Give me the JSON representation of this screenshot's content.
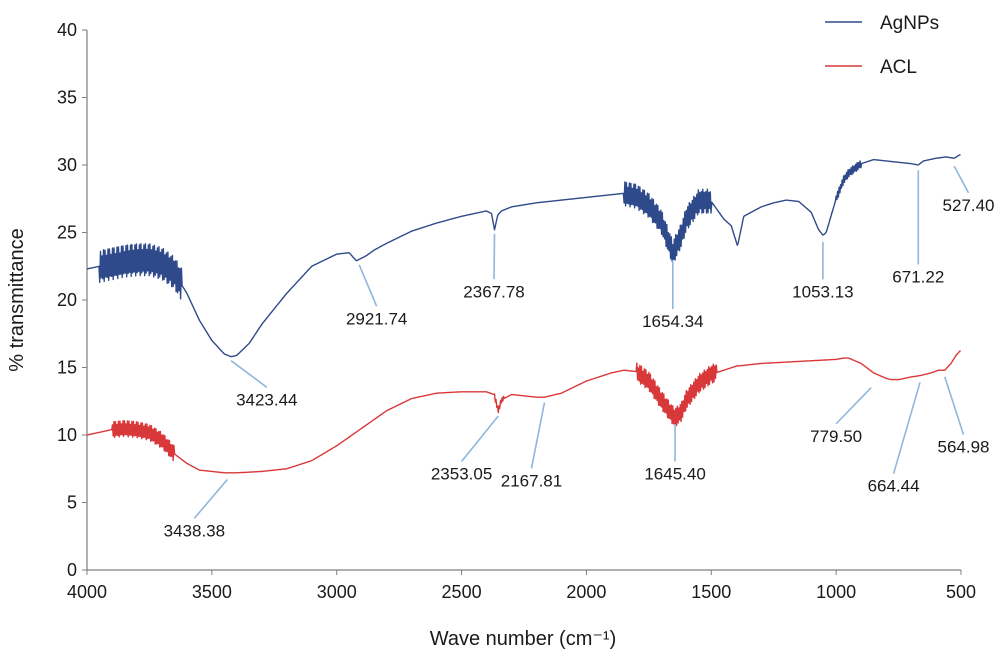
{
  "chart_data": {
    "type": "line",
    "title": "",
    "xlabel": "Wave number (cm⁻¹)",
    "ylabel": "% transmittance",
    "xlim": [
      4000,
      500
    ],
    "ylim": [
      0,
      40
    ],
    "x_reversed": true,
    "x_ticks": [
      4000,
      3500,
      3000,
      2500,
      2000,
      1500,
      1000,
      500
    ],
    "y_ticks": [
      0,
      5,
      10,
      15,
      20,
      25,
      30,
      35,
      40
    ],
    "grid": false,
    "legend_position": "top-right",
    "series": [
      {
        "name": "AgNPs",
        "color": "#2f4a8a",
        "noise_bands": [
          [
            3950,
            3620,
            1.2
          ],
          [
            1850,
            1500,
            0.9
          ],
          [
            1000,
            900,
            0.3
          ]
        ],
        "points": [
          [
            4000,
            22.3
          ],
          [
            3950,
            22.5
          ],
          [
            3900,
            22.7
          ],
          [
            3850,
            22.9
          ],
          [
            3800,
            23.0
          ],
          [
            3750,
            23.0
          ],
          [
            3700,
            22.7
          ],
          [
            3650,
            22.0
          ],
          [
            3600,
            20.5
          ],
          [
            3550,
            18.5
          ],
          [
            3500,
            17.0
          ],
          [
            3450,
            16.0
          ],
          [
            3423,
            15.8
          ],
          [
            3400,
            15.9
          ],
          [
            3350,
            16.8
          ],
          [
            3300,
            18.2
          ],
          [
            3200,
            20.5
          ],
          [
            3100,
            22.5
          ],
          [
            3000,
            23.4
          ],
          [
            2950,
            23.5
          ],
          [
            2921,
            22.9
          ],
          [
            2880,
            23.3
          ],
          [
            2850,
            23.7
          ],
          [
            2800,
            24.2
          ],
          [
            2700,
            25.1
          ],
          [
            2600,
            25.7
          ],
          [
            2500,
            26.2
          ],
          [
            2400,
            26.6
          ],
          [
            2380,
            26.4
          ],
          [
            2368,
            25.2
          ],
          [
            2355,
            26.3
          ],
          [
            2340,
            26.6
          ],
          [
            2300,
            26.9
          ],
          [
            2200,
            27.2
          ],
          [
            2100,
            27.4
          ],
          [
            2000,
            27.6
          ],
          [
            1900,
            27.8
          ],
          [
            1850,
            27.9
          ],
          [
            1800,
            27.7
          ],
          [
            1750,
            27.0
          ],
          [
            1700,
            25.8
          ],
          [
            1654,
            23.5
          ],
          [
            1620,
            24.8
          ],
          [
            1600,
            26.0
          ],
          [
            1550,
            27.3
          ],
          [
            1500,
            27.3
          ],
          [
            1450,
            26.0
          ],
          [
            1420,
            25.5
          ],
          [
            1395,
            24.0
          ],
          [
            1370,
            26.2
          ],
          [
            1300,
            26.9
          ],
          [
            1250,
            27.2
          ],
          [
            1200,
            27.4
          ],
          [
            1150,
            27.3
          ],
          [
            1100,
            26.5
          ],
          [
            1070,
            25.2
          ],
          [
            1053,
            24.8
          ],
          [
            1040,
            25.0
          ],
          [
            1000,
            27.5
          ],
          [
            970,
            28.9
          ],
          [
            950,
            29.4
          ],
          [
            900,
            30.1
          ],
          [
            850,
            30.4
          ],
          [
            800,
            30.3
          ],
          [
            750,
            30.2
          ],
          [
            700,
            30.1
          ],
          [
            671,
            30.0
          ],
          [
            650,
            30.3
          ],
          [
            600,
            30.5
          ],
          [
            560,
            30.6
          ],
          [
            527,
            30.5
          ],
          [
            510,
            30.7
          ],
          [
            500,
            30.8
          ]
        ]
      },
      {
        "name": "ACL",
        "color": "#d9383a",
        "noise_bands": [
          [
            3900,
            3650,
            0.6
          ],
          [
            1800,
            1480,
            0.7
          ],
          [
            2370,
            2330,
            0.2
          ]
        ],
        "points": [
          [
            4000,
            10.0
          ],
          [
            3950,
            10.2
          ],
          [
            3900,
            10.4
          ],
          [
            3850,
            10.5
          ],
          [
            3800,
            10.4
          ],
          [
            3750,
            10.2
          ],
          [
            3700,
            9.6
          ],
          [
            3650,
            8.6
          ],
          [
            3600,
            7.9
          ],
          [
            3550,
            7.4
          ],
          [
            3500,
            7.3
          ],
          [
            3450,
            7.2
          ],
          [
            3438,
            7.2
          ],
          [
            3400,
            7.2
          ],
          [
            3300,
            7.3
          ],
          [
            3200,
            7.5
          ],
          [
            3100,
            8.1
          ],
          [
            3000,
            9.2
          ],
          [
            2900,
            10.5
          ],
          [
            2800,
            11.8
          ],
          [
            2700,
            12.7
          ],
          [
            2600,
            13.1
          ],
          [
            2500,
            13.2
          ],
          [
            2400,
            13.2
          ],
          [
            2370,
            13.0
          ],
          [
            2353,
            11.8
          ],
          [
            2340,
            12.6
          ],
          [
            2300,
            13.0
          ],
          [
            2250,
            12.9
          ],
          [
            2200,
            12.8
          ],
          [
            2168,
            12.8
          ],
          [
            2100,
            13.1
          ],
          [
            2000,
            14.0
          ],
          [
            1900,
            14.6
          ],
          [
            1850,
            14.8
          ],
          [
            1800,
            14.7
          ],
          [
            1750,
            14.0
          ],
          [
            1700,
            12.6
          ],
          [
            1660,
            11.6
          ],
          [
            1645,
            11.3
          ],
          [
            1620,
            11.7
          ],
          [
            1600,
            12.6
          ],
          [
            1550,
            13.8
          ],
          [
            1500,
            14.5
          ],
          [
            1450,
            14.8
          ],
          [
            1400,
            15.1
          ],
          [
            1300,
            15.3
          ],
          [
            1200,
            15.4
          ],
          [
            1100,
            15.5
          ],
          [
            1000,
            15.6
          ],
          [
            970,
            15.7
          ],
          [
            950,
            15.7
          ],
          [
            900,
            15.3
          ],
          [
            850,
            14.6
          ],
          [
            800,
            14.2
          ],
          [
            779,
            14.1
          ],
          [
            750,
            14.1
          ],
          [
            700,
            14.3
          ],
          [
            664,
            14.4
          ],
          [
            620,
            14.6
          ],
          [
            590,
            14.8
          ],
          [
            565,
            14.8
          ],
          [
            540,
            15.3
          ],
          [
            520,
            15.9
          ],
          [
            500,
            16.3
          ]
        ]
      }
    ],
    "annotations": [
      {
        "text": "3423.44",
        "series": "AgNPs",
        "x": 3423,
        "y": 15.8,
        "label_x": 3280,
        "label_y": 12.2
      },
      {
        "text": "2921.74",
        "series": "AgNPs",
        "x": 2910,
        "y": 22.9,
        "label_x": 2840,
        "label_y": 18.2
      },
      {
        "text": "2367.78",
        "series": "AgNPs",
        "x": 2368,
        "y": 25.2,
        "label_x": 2370,
        "label_y": 20.2
      },
      {
        "text": "1654.34",
        "series": "AgNPs",
        "x": 1654,
        "y": 23.2,
        "label_x": 1654,
        "label_y": 18.0
      },
      {
        "text": "1053.13",
        "series": "AgNPs",
        "x": 1053,
        "y": 24.6,
        "label_x": 1053,
        "label_y": 20.2
      },
      {
        "text": "671.22",
        "series": "AgNPs",
        "x": 671,
        "y": 29.9,
        "label_x": 671,
        "label_y": 21.3
      },
      {
        "text": "527.40",
        "series": "AgNPs",
        "x": 527,
        "y": 30.2,
        "label_x": 470,
        "label_y": 26.6
      },
      {
        "text": "3438.38",
        "series": "ACL",
        "x": 3438,
        "y": 7.0,
        "label_x": 3570,
        "label_y": 2.5
      },
      {
        "text": "2353.05",
        "series": "ACL",
        "x": 2353,
        "y": 11.7,
        "label_x": 2500,
        "label_y": 6.7
      },
      {
        "text": "2167.81",
        "series": "ACL",
        "x": 2168,
        "y": 12.7,
        "label_x": 2220,
        "label_y": 6.2
      },
      {
        "text": "1645.40",
        "series": "ACL",
        "x": 1645,
        "y": 11.1,
        "label_x": 1645,
        "label_y": 6.7
      },
      {
        "text": "779.50",
        "series": "ACL",
        "x": 860,
        "y": 13.8,
        "label_x": 1000,
        "label_y": 9.5
      },
      {
        "text": "664.44",
        "series": "ACL",
        "x": 664,
        "y": 14.2,
        "label_x": 770,
        "label_y": 5.8
      },
      {
        "text": "564.98",
        "series": "ACL",
        "x": 565,
        "y": 14.6,
        "label_x": 490,
        "label_y": 8.7
      }
    ],
    "annotation_line_color": "#8fb7dc"
  }
}
